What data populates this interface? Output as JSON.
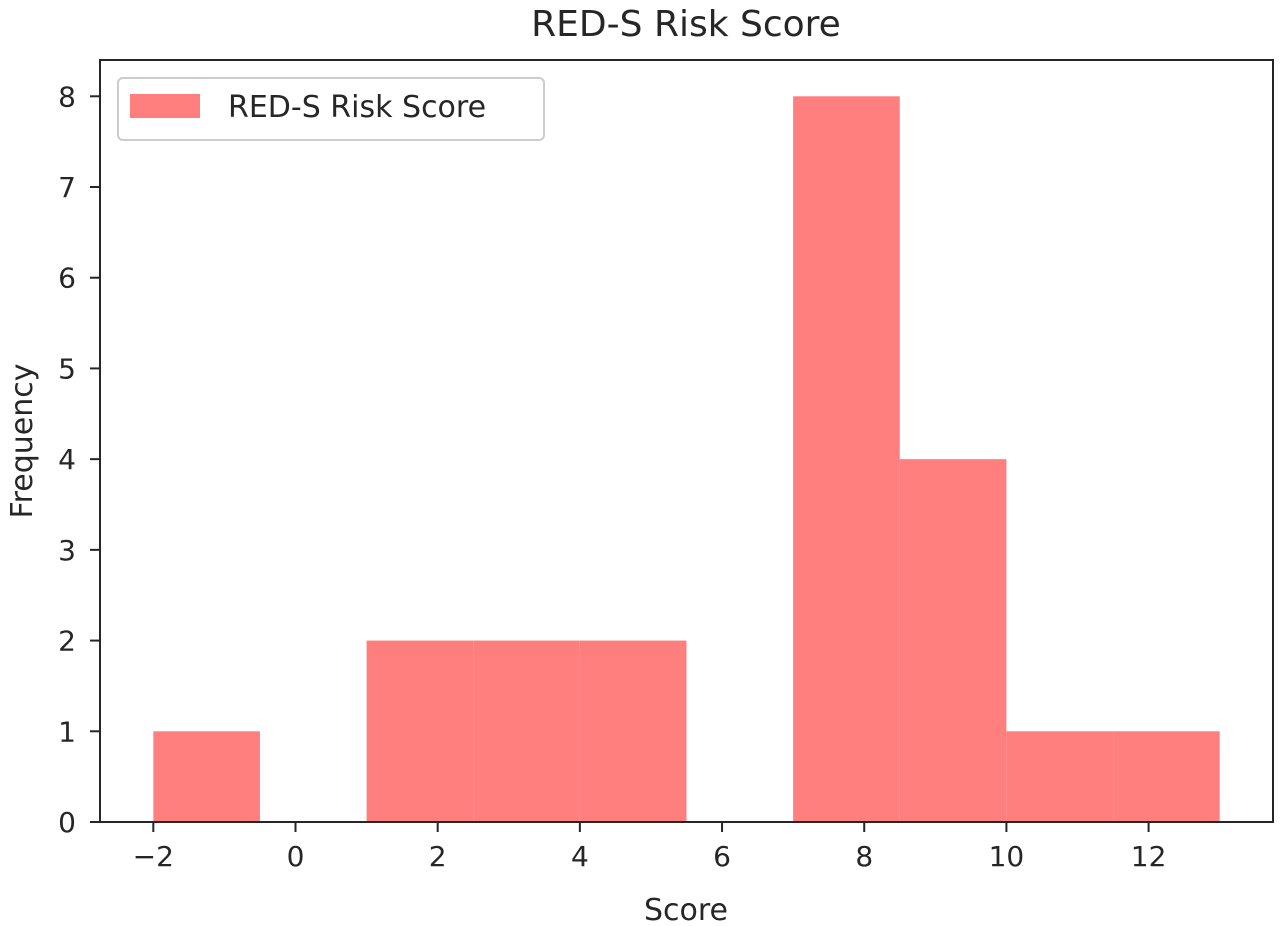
{
  "chart_data": {
    "type": "bar",
    "title": "RED-S Risk Score",
    "xlabel": "Score",
    "ylabel": "Frequency",
    "xlim": [
      -2.75,
      13.75
    ],
    "ylim": [
      0,
      8.4
    ],
    "x_ticks": [
      -2,
      0,
      2,
      4,
      6,
      8,
      10,
      12
    ],
    "x_tick_labels": [
      "−2",
      "0",
      "2",
      "4",
      "6",
      "8",
      "10",
      "12"
    ],
    "y_ticks": [
      0,
      1,
      2,
      3,
      4,
      5,
      6,
      7,
      8
    ],
    "y_tick_labels": [
      "0",
      "1",
      "2",
      "3",
      "4",
      "5",
      "6",
      "7",
      "8"
    ],
    "grid": false,
    "legend_position": "top-left",
    "series": [
      {
        "name": "RED-S Risk Score",
        "color": "#ff7f7f",
        "bins": [
          {
            "x0": -2.0,
            "x1": -0.5,
            "count": 1
          },
          {
            "x0": -0.5,
            "x1": 1.0,
            "count": 0
          },
          {
            "x0": 1.0,
            "x1": 2.5,
            "count": 2
          },
          {
            "x0": 2.5,
            "x1": 4.0,
            "count": 2
          },
          {
            "x0": 4.0,
            "x1": 5.5,
            "count": 2
          },
          {
            "x0": 5.5,
            "x1": 7.0,
            "count": 0
          },
          {
            "x0": 7.0,
            "x1": 8.5,
            "count": 8
          },
          {
            "x0": 8.5,
            "x1": 10.0,
            "count": 4
          },
          {
            "x0": 10.0,
            "x1": 11.5,
            "count": 1
          },
          {
            "x0": 11.5,
            "x1": 13.0,
            "count": 1
          }
        ]
      }
    ]
  }
}
